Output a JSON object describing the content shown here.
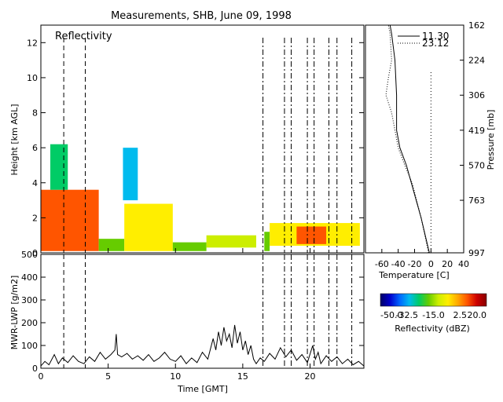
{
  "title": "Measurements, SHB, June 09, 1998",
  "colors": {
    "background": "#ffffff",
    "axes": "#000000",
    "reflectivity_colormap": [
      "#000066",
      "#0000cc",
      "#0066ff",
      "#00bbee",
      "#00cc66",
      "#66cc00",
      "#ccee00",
      "#ffee00",
      "#ffaa00",
      "#ff5500",
      "#cc0000",
      "#880000"
    ]
  },
  "chart_data": [
    {
      "id": "reflectivity",
      "type": "heatmap",
      "panel_label": "Reflectivity",
      "xlabel": "",
      "ylabel": "Height [km AGL]",
      "xlim": [
        0,
        24
      ],
      "ylim": [
        0,
        13
      ],
      "x_ticks": [
        0,
        5,
        10,
        15,
        20
      ],
      "y_ticks": [
        0,
        2,
        4,
        6,
        8,
        10,
        12
      ],
      "vertical_dashed_lines": [
        1.7,
        3.3
      ],
      "vertical_dashdot_lines": [
        16.5,
        18.1,
        18.6,
        19.8,
        20.3,
        21.4,
        22.0,
        23.1
      ],
      "echo_regions": [
        {
          "x_start": 0.0,
          "x_end": 4.3,
          "bottom": 0.1,
          "top": 3.6,
          "dbz": 8
        },
        {
          "x_start": 0.7,
          "x_end": 2.0,
          "bottom": 3.6,
          "top": 6.2,
          "dbz": -22
        },
        {
          "x_start": 4.3,
          "x_end": 6.2,
          "bottom": 0.1,
          "top": 0.8,
          "dbz": -18
        },
        {
          "x_start": 6.2,
          "x_end": 9.8,
          "bottom": 0.1,
          "top": 2.8,
          "dbz": -8
        },
        {
          "x_start": 6.1,
          "x_end": 7.2,
          "bottom": 3.0,
          "top": 6.0,
          "dbz": -30
        },
        {
          "x_start": 9.8,
          "x_end": 12.3,
          "bottom": 0.1,
          "top": 0.6,
          "dbz": -20
        },
        {
          "x_start": 12.3,
          "x_end": 16.0,
          "bottom": 0.3,
          "top": 1.0,
          "dbz": -12
        },
        {
          "x_start": 16.6,
          "x_end": 17.0,
          "bottom": 0.1,
          "top": 1.2,
          "dbz": -20
        },
        {
          "x_start": 17.0,
          "x_end": 23.7,
          "bottom": 0.4,
          "top": 1.7,
          "dbz": -4
        },
        {
          "x_start": 19.0,
          "x_end": 21.2,
          "bottom": 0.5,
          "top": 1.5,
          "dbz": 8
        }
      ]
    },
    {
      "id": "lwp",
      "type": "line",
      "ylabel": "MWR-LWP [g/m2]",
      "xlabel": "Time [GMT]",
      "xlim": [
        0,
        24
      ],
      "ylim": [
        0,
        500
      ],
      "x_ticks": [
        0,
        5,
        10,
        15,
        20
      ],
      "y_ticks": [
        0,
        100,
        200,
        300,
        400,
        500
      ],
      "series": [
        {
          "x": [
            0.0,
            0.3,
            0.6,
            1.0,
            1.3,
            1.6,
            2.0,
            2.4,
            2.8,
            3.2,
            3.6,
            4.0,
            4.4,
            4.8,
            5.2,
            5.5,
            5.6,
            5.7,
            6.0,
            6.4,
            6.8,
            7.2,
            7.6,
            8.0,
            8.4,
            8.8,
            9.2,
            9.6,
            10.0,
            10.4,
            10.8,
            11.2,
            11.6,
            12.0,
            12.4,
            12.8,
            13.0,
            13.2,
            13.4,
            13.6,
            13.8,
            14.0,
            14.2,
            14.4,
            14.6,
            14.8,
            15.0,
            15.2,
            15.4,
            15.6,
            15.8,
            16.0,
            16.3,
            16.6,
            17.0,
            17.4,
            17.8,
            18.2,
            18.6,
            19.0,
            19.4,
            19.8,
            20.2,
            20.4,
            20.6,
            20.8,
            21.2,
            21.6,
            22.0,
            22.4,
            22.8,
            23.2,
            23.6,
            24.0
          ],
          "y": [
            10,
            30,
            15,
            60,
            20,
            45,
            25,
            55,
            30,
            20,
            50,
            30,
            70,
            40,
            60,
            80,
            150,
            60,
            50,
            65,
            40,
            55,
            35,
            60,
            30,
            45,
            70,
            40,
            30,
            55,
            20,
            45,
            25,
            70,
            40,
            130,
            80,
            160,
            100,
            180,
            120,
            150,
            90,
            190,
            110,
            160,
            80,
            120,
            60,
            100,
            40,
            20,
            45,
            30,
            65,
            40,
            90,
            50,
            80,
            35,
            60,
            25,
            100,
            40,
            70,
            20,
            55,
            30,
            50,
            20,
            40,
            15,
            30,
            10
          ]
        }
      ]
    },
    {
      "id": "temperature",
      "type": "line",
      "ylabel": "Pressure [mb]",
      "xlabel": "Temperature [C]",
      "xlim": [
        -80,
        40
      ],
      "ylim": [
        0,
        13
      ],
      "x_ticks": [
        -60,
        -40,
        -20,
        0,
        20,
        40
      ],
      "x_tick_labels": [
        "-60",
        "-40",
        "-20",
        "0",
        "20",
        "40"
      ],
      "y_tick_labels": [
        "162",
        "224",
        "306",
        "419",
        "570",
        "763",
        "997"
      ],
      "y_tick_heights_km": [
        13,
        11,
        9,
        7,
        5,
        3,
        0
      ],
      "series": [
        {
          "name": "11.30",
          "style": "solid",
          "height_km": [
            0,
            2,
            4,
            5,
            6,
            7,
            9,
            11,
            12.5,
            13
          ],
          "temperature": [
            -2,
            -12,
            -24,
            -30,
            -38,
            -42,
            -42,
            -44,
            -48,
            -50
          ]
        },
        {
          "name": "23.12",
          "style": "dotted",
          "height_km": [
            0,
            2,
            4,
            5,
            6,
            7,
            8,
            9,
            10,
            11,
            12.5,
            13
          ],
          "temperature": [
            -3,
            -12,
            -23,
            -32,
            -40,
            -44,
            -48,
            -55,
            -52,
            -48,
            -50,
            -52
          ]
        }
      ],
      "reference_line": {
        "style": "dotted",
        "temperature": 0
      }
    }
  ],
  "colorbar": {
    "label": "Reflectivity (dBZ)",
    "range": [
      -50,
      20
    ],
    "tick_labels": [
      "-50.0",
      "-32.5",
      "-15.0",
      "2.5",
      "20.0"
    ],
    "ticks": [
      -50,
      -32.5,
      -15,
      2.5,
      20
    ]
  }
}
